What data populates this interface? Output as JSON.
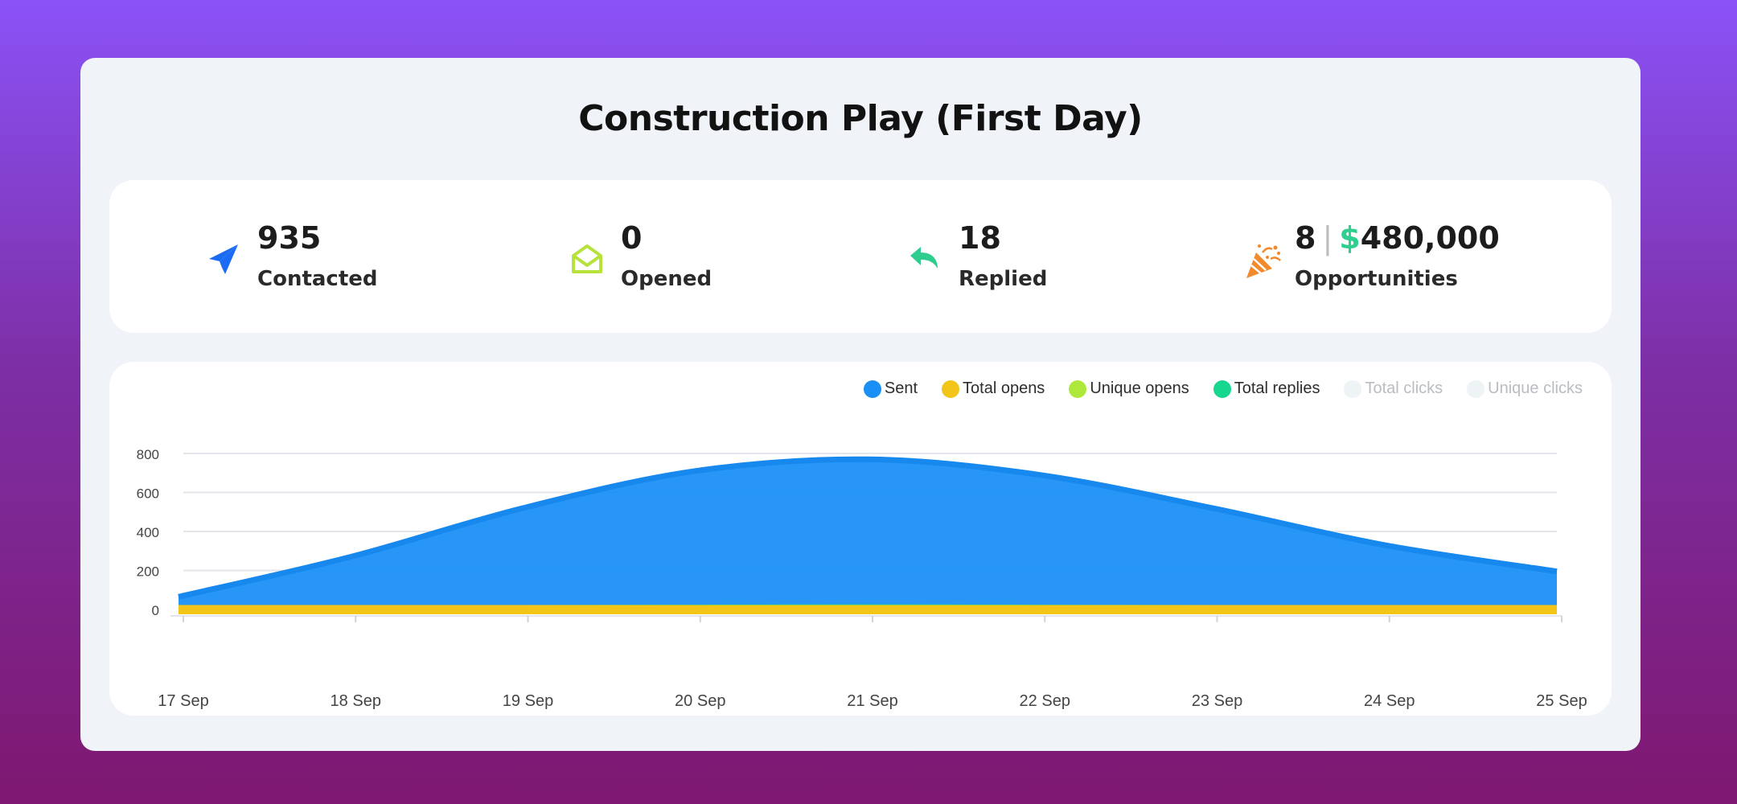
{
  "title": "Construction Play (First Day)",
  "stats": {
    "contacted": {
      "value": "935",
      "label": "Contacted"
    },
    "opened": {
      "value": "0",
      "label": "Opened"
    },
    "replied": {
      "value": "18",
      "label": "Replied"
    },
    "opportunities": {
      "count": "8",
      "separator": "|",
      "currency": "$",
      "amount": "480,000",
      "label": "Opportunities"
    }
  },
  "colors": {
    "sent": "#1a8ff5",
    "total_opens": "#f2c518",
    "unique_opens": "#aee83a",
    "total_replies": "#17d68d",
    "total_clicks": "#eef3f5",
    "unique_clicks": "#eef3f5"
  },
  "legend": [
    {
      "key": "sent",
      "label": "Sent",
      "active": true
    },
    {
      "key": "total_opens",
      "label": "Total opens",
      "active": true
    },
    {
      "key": "unique_opens",
      "label": "Unique opens",
      "active": true
    },
    {
      "key": "total_replies",
      "label": "Total replies",
      "active": true
    },
    {
      "key": "total_clicks",
      "label": "Total clicks",
      "active": false
    },
    {
      "key": "unique_clicks",
      "label": "Unique clicks",
      "active": false
    }
  ],
  "chart_data": {
    "type": "area",
    "categories": [
      "17 Sep",
      "18 Sep",
      "19 Sep",
      "20 Sep",
      "21 Sep",
      "22 Sep",
      "23 Sep",
      "24 Sep",
      "25 Sep"
    ],
    "ylim": [
      0,
      800
    ],
    "yticks": [
      0,
      200,
      400,
      600,
      800
    ],
    "grid": true,
    "legend_position": "top-right",
    "series": [
      {
        "name": "Sent",
        "key": "sent",
        "values": [
          65,
          270,
          520,
          710,
          770,
          690,
          520,
          330,
          195
        ]
      },
      {
        "name": "Total replies",
        "key": "total_replies",
        "values": [
          3,
          5,
          8,
          10,
          12,
          10,
          8,
          5,
          3
        ]
      },
      {
        "name": "Unique opens",
        "key": "unique_opens",
        "values": [
          0,
          0,
          0,
          0,
          0,
          0,
          0,
          0,
          0
        ]
      },
      {
        "name": "Total opens",
        "key": "total_opens",
        "values": [
          0,
          0,
          0,
          0,
          0,
          0,
          0,
          0,
          0
        ]
      }
    ]
  }
}
